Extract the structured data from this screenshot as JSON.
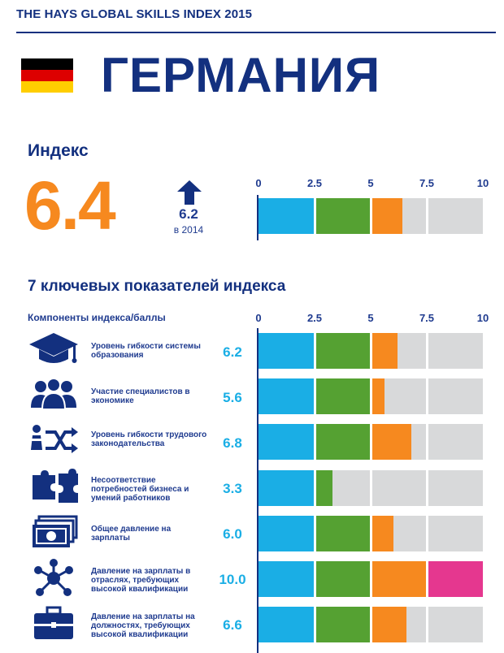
{
  "header": {
    "title": "THE HAYS GLOBAL SKILLS INDEX 2015"
  },
  "country": {
    "name": "ГЕРМАНИЯ",
    "flag_colors": [
      "#000000",
      "#dd0000",
      "#ffce00"
    ]
  },
  "index": {
    "title": "Индекс",
    "value": "6.4",
    "prev_value": "6.2",
    "prev_label": "в 2014",
    "trend": "up",
    "trend_icon": "arrow-up-icon"
  },
  "components": {
    "title": "7 ключевых показателей индекса",
    "label": "Компоненты индекса/баллы"
  },
  "colors": {
    "blue": "#1aaee5",
    "green": "#55a132",
    "orange": "#f6891f",
    "gray": "#d8d9da",
    "pink": "#e5378f",
    "navy": "#13307f"
  },
  "chart_data": [
    {
      "type": "bar",
      "orientation": "horizontal",
      "stacked_bands": [
        0,
        2.5,
        5,
        7.5,
        10
      ],
      "xlim": [
        0,
        10
      ],
      "ticks": [
        "0",
        "2.5",
        "5",
        "7.5",
        "10"
      ],
      "categories": [
        "Индекс"
      ],
      "values": [
        6.4
      ]
    },
    {
      "type": "bar",
      "orientation": "horizontal",
      "stacked_bands": [
        0,
        2.5,
        5,
        7.5,
        10
      ],
      "xlim": [
        0,
        10
      ],
      "ticks": [
        "0",
        "2.5",
        "5",
        "7.5",
        "10"
      ],
      "categories": [
        "Уровень гибкости системы образования",
        "Участие специалистов в экономике",
        "Уровень гибкости трудового законодательства",
        "Несоответствие потребностей бизнеса и умений работников",
        "Общее давление на зарплаты",
        "Давление на зарплаты в отраслях, требующих высокой квалификации",
        "Давление на зарплаты на должностях, требующих высокой квалификации"
      ],
      "values": [
        6.2,
        5.6,
        6.8,
        3.3,
        6.0,
        10.0,
        6.6
      ],
      "value_labels": [
        "6.2",
        "5.6",
        "6.8",
        "3.3",
        "6.0",
        "10.0",
        "6.6"
      ],
      "icons": [
        "graduation-cap-icon",
        "people-group-icon",
        "shuffle-arrows-icon",
        "puzzle-pieces-icon",
        "banknotes-icon",
        "network-nodes-icon",
        "briefcase-icon"
      ]
    }
  ],
  "rows": [
    {
      "label": "Уровень гибкости системы образования",
      "value": "6.2"
    },
    {
      "label": "Участие специалистов в экономике",
      "value": "5.6"
    },
    {
      "label": "Уровень гибкости трудового законодательства",
      "value": "6.8"
    },
    {
      "label": "Несоответствие потребностей бизнеса и умений работников",
      "value": "3.3"
    },
    {
      "label": "Общее давление на зарплаты",
      "value": "6.0"
    },
    {
      "label": "Давление на зарплаты в отраслях, требующих высокой квалификации",
      "value": "10.0"
    },
    {
      "label": "Давление на зарплаты на должностях, требующих высокой квалификации",
      "value": "6.6"
    }
  ]
}
